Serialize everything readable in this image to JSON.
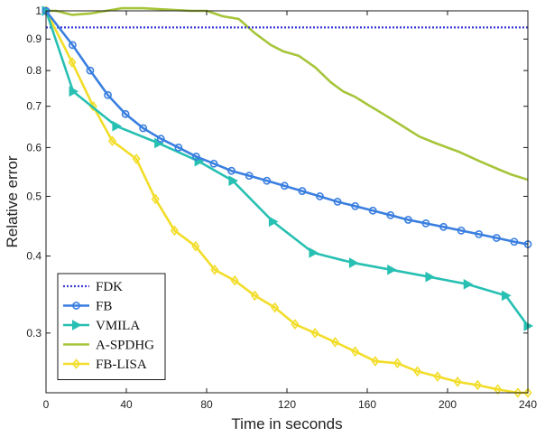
{
  "chart_data": {
    "type": "line",
    "xlabel": "Time in seconds",
    "ylabel": "Relative error",
    "xlim": [
      0,
      240
    ],
    "ylim": [
      0.24,
      1.0
    ],
    "y_scale": "log",
    "x_ticks": [
      0,
      40,
      80,
      120,
      160,
      200,
      240
    ],
    "y_ticks": [
      0.3,
      0.4,
      0.5,
      0.6,
      0.7,
      0.8,
      0.9,
      1
    ],
    "y_tick_labels": [
      "0.3",
      "0.4",
      "0.5",
      "0.6",
      "0.7",
      "0.8",
      "0.9",
      "1"
    ],
    "grid": false,
    "legend_position": "bottom-left",
    "series": [
      {
        "name": "FDK",
        "color": "#3a3ad6",
        "style": "dotted",
        "marker": "none",
        "x": [
          0,
          240
        ],
        "y": [
          0.94,
          0.94
        ]
      },
      {
        "name": "FB",
        "color": "#3a7fe0",
        "style": "solid",
        "marker": "circle",
        "x": [
          0,
          13.2,
          22,
          30.8,
          39.6,
          48.4,
          57.2,
          66,
          74.8,
          83.6,
          92.4,
          101.2,
          110,
          118.8,
          127.6,
          136.4,
          145.2,
          154,
          162.8,
          171.6,
          180.4,
          189.2,
          198,
          206.8,
          215.6,
          224.4,
          233.2,
          240
        ],
        "y": [
          1.0,
          0.88,
          0.8,
          0.73,
          0.68,
          0.645,
          0.62,
          0.6,
          0.58,
          0.565,
          0.55,
          0.54,
          0.53,
          0.52,
          0.51,
          0.5,
          0.49,
          0.482,
          0.474,
          0.466,
          0.458,
          0.452,
          0.446,
          0.44,
          0.434,
          0.428,
          0.422,
          0.418
        ]
      },
      {
        "name": "VMILA",
        "color": "#27c0b2",
        "style": "solid",
        "marker": "triangle-right",
        "x": [
          0,
          13.5,
          35,
          56,
          76,
          93,
          113,
          133,
          153,
          172,
          191,
          210,
          229,
          240
        ],
        "y": [
          1.0,
          0.74,
          0.65,
          0.61,
          0.57,
          0.53,
          0.455,
          0.405,
          0.39,
          0.38,
          0.37,
          0.36,
          0.345,
          0.308
        ]
      },
      {
        "name": "A-SPDHG",
        "color": "#a6c53a",
        "style": "solid",
        "marker": "none",
        "x": [
          0,
          5,
          13,
          22,
          30,
          38,
          48,
          60,
          72,
          80,
          88,
          96,
          104,
          112,
          118,
          126,
          134,
          142,
          148,
          154,
          160,
          168,
          176,
          186,
          194,
          206,
          216,
          226,
          232,
          240
        ],
        "y": [
          1.0,
          1.0,
          0.985,
          0.99,
          1.0,
          1.01,
          1.01,
          1.005,
          1.0,
          1.0,
          0.98,
          0.97,
          0.92,
          0.88,
          0.86,
          0.845,
          0.81,
          0.765,
          0.74,
          0.725,
          0.705,
          0.68,
          0.655,
          0.625,
          0.61,
          0.59,
          0.57,
          0.552,
          0.542,
          0.532
        ]
      },
      {
        "name": "FB-LISA",
        "color": "#f2dd28",
        "style": "solid",
        "marker": "diamond",
        "x": [
          0,
          13,
          23.5,
          33,
          45,
          54.5,
          64,
          74.5,
          84,
          94,
          104,
          114,
          124,
          134,
          144,
          154,
          164,
          175,
          185,
          195,
          205,
          215,
          225,
          235,
          240
        ],
        "y": [
          1.0,
          0.825,
          0.7,
          0.615,
          0.575,
          0.495,
          0.44,
          0.415,
          0.38,
          0.365,
          0.345,
          0.33,
          0.31,
          0.3,
          0.29,
          0.28,
          0.27,
          0.268,
          0.26,
          0.255,
          0.25,
          0.247,
          0.243,
          0.24,
          0.24
        ]
      }
    ]
  }
}
